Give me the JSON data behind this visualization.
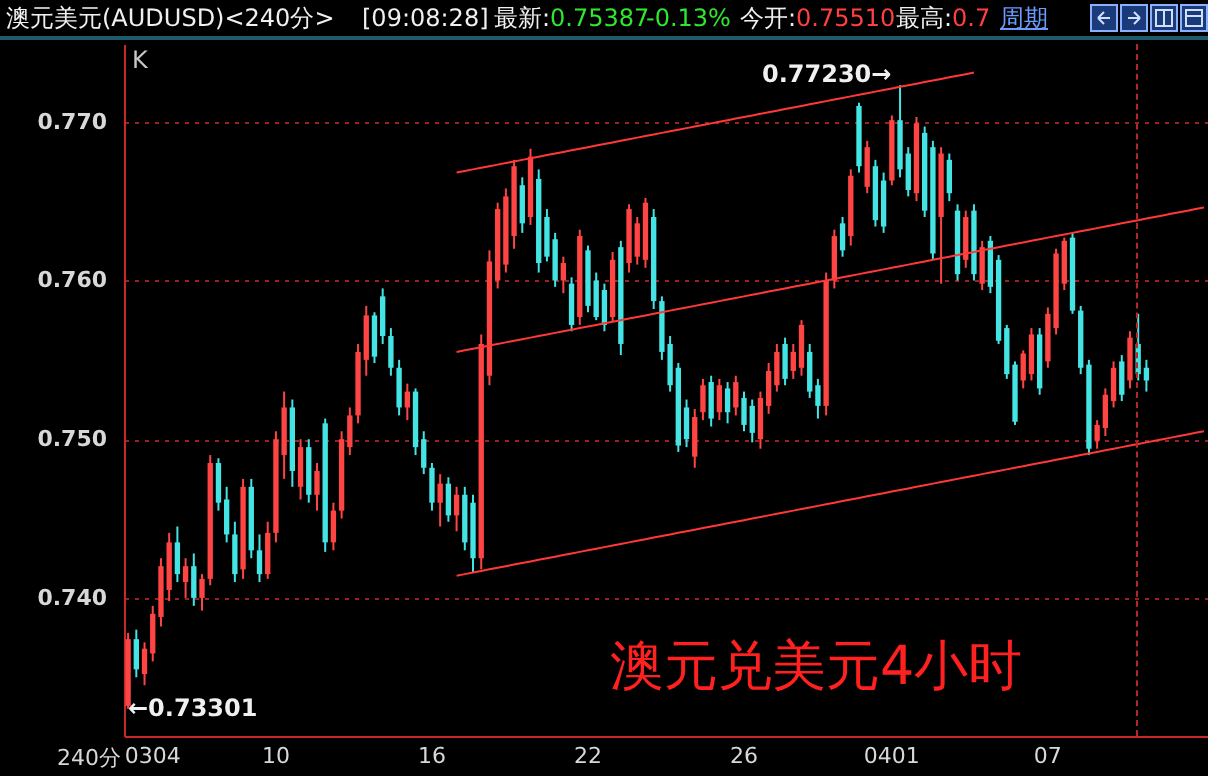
{
  "chart_data": {
    "type": "candlestick",
    "title": "澳元美元(AUDUSD)<240分>",
    "xlabel": "240分",
    "categories": [
      null,
      null,
      null,
      "0304",
      null,
      null,
      null,
      null,
      null,
      null,
      null,
      null,
      null,
      null,
      null,
      null,
      null,
      null,
      "10",
      null,
      null,
      null,
      null,
      null,
      null,
      null,
      null,
      null,
      null,
      null,
      null,
      null,
      null,
      null,
      null,
      null,
      null,
      "16",
      null,
      null,
      null,
      null,
      null,
      null,
      null,
      null,
      null,
      null,
      null,
      null,
      null,
      null,
      null,
      null,
      null,
      null,
      "22",
      null,
      null,
      null,
      null,
      null,
      null,
      null,
      null,
      null,
      null,
      null,
      null,
      null,
      null,
      null,
      null,
      null,
      null,
      "26",
      null,
      null,
      null,
      null,
      null,
      null,
      null,
      null,
      null,
      null,
      null,
      null,
      null,
      null,
      null,
      null,
      null,
      "0401",
      null,
      null,
      null,
      null,
      null,
      null,
      null,
      null,
      null,
      null,
      null,
      null,
      null,
      null,
      null,
      null,
      null,
      null,
      "07",
      null,
      null,
      null,
      null,
      null,
      null,
      null,
      null,
      null,
      null,
      null,
      null,
      null,
      null,
      null,
      null,
      null,
      null,
      null
    ],
    "ohlc": [
      [
        0.7332,
        0.7378,
        0.73301,
        0.7374
      ],
      [
        0.7374,
        0.738,
        0.735,
        0.7355
      ],
      [
        0.7352,
        0.7372,
        0.7345,
        0.7368
      ],
      [
        0.7365,
        0.7395,
        0.736,
        0.739
      ],
      [
        0.7388,
        0.7425,
        0.7382,
        0.742
      ],
      [
        0.7405,
        0.7441,
        0.7398,
        0.7435
      ],
      [
        0.7435,
        0.7445,
        0.741,
        0.7415
      ],
      [
        0.741,
        0.7425,
        0.74,
        0.742
      ],
      [
        0.742,
        0.7428,
        0.7395,
        0.74
      ],
      [
        0.74,
        0.7415,
        0.7392,
        0.7412
      ],
      [
        0.7412,
        0.749,
        0.7408,
        0.7485
      ],
      [
        0.7485,
        0.7488,
        0.7455,
        0.746
      ],
      [
        0.7462,
        0.747,
        0.7435,
        0.744
      ],
      [
        0.744,
        0.7448,
        0.741,
        0.7415
      ],
      [
        0.7418,
        0.7475,
        0.7412,
        0.747
      ],
      [
        0.747,
        0.7475,
        0.7425,
        0.743
      ],
      [
        0.743,
        0.744,
        0.741,
        0.7415
      ],
      [
        0.7415,
        0.7448,
        0.7412,
        0.7441
      ],
      [
        0.7441,
        0.7505,
        0.7435,
        0.75
      ],
      [
        0.749,
        0.753,
        0.7475,
        0.752
      ],
      [
        0.752,
        0.7525,
        0.747,
        0.748
      ],
      [
        0.747,
        0.75,
        0.7462,
        0.7495
      ],
      [
        0.7495,
        0.75,
        0.746,
        0.7465
      ],
      [
        0.7465,
        0.7485,
        0.7455,
        0.748
      ],
      [
        0.751,
        0.7513,
        0.7429,
        0.7435
      ],
      [
        0.7435,
        0.746,
        0.743,
        0.7455
      ],
      [
        0.7455,
        0.7505,
        0.745,
        0.75
      ],
      [
        0.7495,
        0.752,
        0.749,
        0.7515
      ],
      [
        0.7515,
        0.756,
        0.751,
        0.7555
      ],
      [
        0.755,
        0.7584,
        0.754,
        0.7578
      ],
      [
        0.7578,
        0.758,
        0.7548,
        0.7552
      ],
      [
        0.759,
        0.7595,
        0.756,
        0.7565
      ],
      [
        0.7565,
        0.757,
        0.754,
        0.7545
      ],
      [
        0.7545,
        0.755,
        0.7515,
        0.752
      ],
      [
        0.752,
        0.7535,
        0.7512,
        0.753
      ],
      [
        0.753,
        0.7532,
        0.749,
        0.7495
      ],
      [
        0.75,
        0.7505,
        0.7478,
        0.7482
      ],
      [
        0.7482,
        0.7485,
        0.7455,
        0.746
      ],
      [
        0.746,
        0.7478,
        0.7445,
        0.7472
      ],
      [
        0.7472,
        0.7476,
        0.7448,
        0.7452
      ],
      [
        0.7452,
        0.747,
        0.7442,
        0.7465
      ],
      [
        0.7465,
        0.747,
        0.743,
        0.7435
      ],
      [
        0.746,
        0.7465,
        0.7416,
        0.7425
      ],
      [
        0.7425,
        0.7566,
        0.7418,
        0.756
      ],
      [
        0.754,
        0.7619,
        0.7534,
        0.7612
      ],
      [
        0.76,
        0.7649,
        0.7595,
        0.7645
      ],
      [
        0.761,
        0.7658,
        0.7605,
        0.7653
      ],
      [
        0.7628,
        0.7676,
        0.762,
        0.7672
      ],
      [
        0.766,
        0.7665,
        0.763,
        0.7636
      ],
      [
        0.764,
        0.7683,
        0.7635,
        0.7678
      ],
      [
        0.7664,
        0.767,
        0.7605,
        0.7611
      ],
      [
        0.764,
        0.7645,
        0.7612,
        0.7615
      ],
      [
        0.7626,
        0.763,
        0.7596,
        0.76
      ],
      [
        0.76,
        0.7615,
        0.7592,
        0.7611
      ],
      [
        0.7598,
        0.7602,
        0.7568,
        0.7572
      ],
      [
        0.7577,
        0.7632,
        0.7572,
        0.7628
      ],
      [
        0.7619,
        0.7622,
        0.758,
        0.7584
      ],
      [
        0.76,
        0.7605,
        0.7575,
        0.7577
      ],
      [
        0.7594,
        0.7598,
        0.7568,
        0.7572
      ],
      [
        0.7577,
        0.7618,
        0.7574,
        0.7613
      ],
      [
        0.7621,
        0.7625,
        0.7553,
        0.756
      ],
      [
        0.7611,
        0.7648,
        0.7605,
        0.7645
      ],
      [
        0.7615,
        0.764,
        0.761,
        0.7636
      ],
      [
        0.7613,
        0.7652,
        0.7608,
        0.7649
      ],
      [
        0.764,
        0.7645,
        0.7582,
        0.7587
      ],
      [
        0.7587,
        0.759,
        0.755,
        0.7555
      ],
      [
        0.756,
        0.7565,
        0.753,
        0.7534
      ],
      [
        0.7545,
        0.7548,
        0.7492,
        0.7496
      ],
      [
        0.752,
        0.7525,
        0.7495,
        0.75
      ],
      [
        0.7489,
        0.7519,
        0.7482,
        0.7514
      ],
      [
        0.7517,
        0.7538,
        0.7512,
        0.7534
      ],
      [
        0.7536,
        0.754,
        0.7508,
        0.7513
      ],
      [
        0.7517,
        0.7538,
        0.7512,
        0.7534
      ],
      [
        0.7532,
        0.7536,
        0.751,
        0.7517
      ],
      [
        0.752,
        0.754,
        0.7515,
        0.7536
      ],
      [
        0.7526,
        0.753,
        0.7505,
        0.7509
      ],
      [
        0.7521,
        0.7525,
        0.7498,
        0.7504
      ],
      [
        0.75,
        0.753,
        0.7494,
        0.7526
      ],
      [
        0.7521,
        0.7548,
        0.7516,
        0.7543
      ],
      [
        0.7534,
        0.756,
        0.753,
        0.7555
      ],
      [
        0.756,
        0.7564,
        0.7534,
        0.7538
      ],
      [
        0.7543,
        0.756,
        0.7538,
        0.7555
      ],
      [
        0.7545,
        0.7575,
        0.754,
        0.7572
      ],
      [
        0.7555,
        0.756,
        0.7526,
        0.753
      ],
      [
        0.7534,
        0.7538,
        0.7513,
        0.7521
      ],
      [
        0.7521,
        0.7605,
        0.7515,
        0.76
      ],
      [
        0.76,
        0.7632,
        0.7595,
        0.7628
      ],
      [
        0.7636,
        0.764,
        0.7615,
        0.7619
      ],
      [
        0.7628,
        0.767,
        0.7622,
        0.7666
      ],
      [
        0.771,
        0.7712,
        0.7668,
        0.7672
      ],
      [
        0.7659,
        0.7688,
        0.7655,
        0.7684
      ],
      [
        0.7672,
        0.7676,
        0.7634,
        0.7638
      ],
      [
        0.7663,
        0.7668,
        0.763,
        0.7634
      ],
      [
        0.7663,
        0.7704,
        0.766,
        0.7701
      ],
      [
        0.7701,
        0.7723,
        0.7665,
        0.767
      ],
      [
        0.768,
        0.7684,
        0.7653,
        0.7657
      ],
      [
        0.7655,
        0.7703,
        0.765,
        0.7699
      ],
      [
        0.7693,
        0.7697,
        0.764,
        0.7644
      ],
      [
        0.7684,
        0.7688,
        0.7613,
        0.7617
      ],
      [
        0.764,
        0.7684,
        0.7598,
        0.768
      ],
      [
        0.7676,
        0.768,
        0.765,
        0.7655
      ],
      [
        0.7644,
        0.7648,
        0.76,
        0.7604
      ],
      [
        0.7613,
        0.7644,
        0.7608,
        0.764
      ],
      [
        0.7644,
        0.7648,
        0.76,
        0.7604
      ],
      [
        0.7598,
        0.7625,
        0.7594,
        0.7621
      ],
      [
        0.7625,
        0.7628,
        0.7592,
        0.7596
      ],
      [
        0.7613,
        0.7616,
        0.756,
        0.7562
      ],
      [
        0.757,
        0.7572,
        0.7538,
        0.7541
      ],
      [
        0.7547,
        0.7549,
        0.7509,
        0.7511
      ],
      [
        0.7537,
        0.7556,
        0.7532,
        0.7554
      ],
      [
        0.7541,
        0.757,
        0.7537,
        0.7566
      ],
      [
        0.7566,
        0.757,
        0.7528,
        0.7532
      ],
      [
        0.7549,
        0.7583,
        0.7545,
        0.7579
      ],
      [
        0.757,
        0.762,
        0.7566,
        0.7617
      ],
      [
        0.7598,
        0.7627,
        0.7594,
        0.7625
      ],
      [
        0.7627,
        0.763,
        0.7579,
        0.7581
      ],
      [
        0.7581,
        0.7584,
        0.7541,
        0.7545
      ],
      [
        0.7547,
        0.755,
        0.749,
        0.7494
      ],
      [
        0.7499,
        0.7512,
        0.7494,
        0.7509
      ],
      [
        0.7507,
        0.7532,
        0.7502,
        0.7528
      ],
      [
        0.7524,
        0.7549,
        0.752,
        0.7545
      ],
      [
        0.7549,
        0.7553,
        0.7524,
        0.7528
      ],
      [
        0.7537,
        0.7568,
        0.7532,
        0.7564
      ],
      [
        0.756,
        0.7579,
        0.7537,
        0.7541
      ],
      [
        0.7545,
        0.755,
        0.753,
        0.7537
      ],
      null,
      null,
      null,
      null,
      null,
      null,
      null
    ],
    "colors": [
      "#ff4444",
      "#44e4e4",
      "#ff4444",
      "#ff4444",
      "#ff4444",
      "#ff4444",
      "#44e4e4",
      "#ff4444",
      "#44e4e4",
      "#ff4444",
      "#ff4444",
      "#44e4e4",
      "#44e4e4",
      "#44e4e4",
      "#ff4444",
      "#44e4e4",
      "#44e4e4",
      "#ff4444",
      "#ff4444",
      "#ff4444",
      "#44e4e4",
      "#ff4444",
      "#44e4e4",
      "#ff4444",
      "#44e4e4",
      "#ff4444",
      "#ff4444",
      "#ff4444",
      "#ff4444",
      "#ff4444",
      "#44e4e4",
      "#44e4e4",
      "#44e4e4",
      "#44e4e4",
      "#ff4444",
      "#44e4e4",
      "#44e4e4",
      "#44e4e4",
      "#ff4444",
      "#44e4e4",
      "#ff4444",
      "#44e4e4",
      "#44e4e4",
      "#ff4444",
      "#ff4444",
      "#ff4444",
      "#ff4444",
      "#ff4444",
      "#44e4e4",
      "#ff4444",
      "#44e4e4",
      "#44e4e4",
      "#44e4e4",
      "#ff4444",
      "#44e4e4",
      "#ff4444",
      "#44e4e4",
      "#44e4e4",
      "#44e4e4",
      "#ff4444",
      "#44e4e4",
      "#ff4444",
      "#ff4444",
      "#ff4444",
      "#44e4e4",
      "#44e4e4",
      "#44e4e4",
      "#44e4e4",
      "#44e4e4",
      "#ff4444",
      "#ff4444",
      "#44e4e4",
      "#ff4444",
      "#44e4e4",
      "#ff4444",
      "#44e4e4",
      "#44e4e4",
      "#ff4444",
      "#ff4444",
      "#ff4444",
      "#44e4e4",
      "#ff4444",
      "#ff4444",
      "#44e4e4",
      "#44e4e4",
      "#ff4444",
      "#ff4444",
      "#44e4e4",
      "#ff4444",
      "#44e4e4",
      "#ff4444",
      "#44e4e4",
      "#44e4e4",
      "#ff4444",
      "#44e4e4",
      "#44e4e4",
      "#ff4444",
      "#44e4e4",
      "#44e4e4",
      "#ff4444",
      "#44e4e4",
      "#44e4e4",
      "#ff4444",
      "#44e4e4",
      "#ff4444",
      "#44e4e4",
      "#44e4e4",
      "#44e4e4",
      "#44e4e4",
      "#ff4444",
      "#ff4444",
      "#44e4e4",
      "#ff4444",
      "#ff4444",
      "#ff4444",
      "#44e4e4",
      "#44e4e4",
      "#44e4e4",
      "#ff4444",
      "#ff4444",
      "#ff4444",
      "#44e4e4",
      "#ff4444",
      "#44e4e4",
      "#44e4e4",
      null,
      null,
      null,
      null,
      null,
      null,
      null
    ],
    "series": [
      {
        "type": "line",
        "color": "#ff3838",
        "values": [
          null,
          null,
          null,
          null,
          null,
          null,
          null,
          null,
          null,
          null,
          null,
          null,
          null,
          null,
          null,
          null,
          null,
          null,
          null,
          null,
          null,
          null,
          null,
          null,
          null,
          null,
          null,
          null,
          null,
          null,
          null,
          null,
          null,
          null,
          null,
          null,
          null,
          null,
          null,
          null,
          0.7668,
          0.7669,
          0.767,
          0.7671,
          0.7672,
          0.7673,
          0.7674,
          0.7675,
          0.7676,
          0.7677,
          0.7678,
          0.7679,
          0.768,
          0.7681,
          0.7682,
          0.7683,
          0.7684,
          0.7685,
          0.7686,
          0.7687,
          0.7688,
          0.7689,
          0.769,
          0.7691,
          0.7692,
          0.7693,
          0.7694,
          0.7695,
          0.7696,
          0.7697,
          0.7698,
          0.7699,
          0.77,
          0.7701,
          0.7702,
          0.7703,
          0.7704,
          0.7705,
          0.7706,
          0.7707,
          0.7708,
          0.7709,
          0.771,
          0.7711,
          0.7712,
          0.7713,
          0.7714,
          0.7715,
          0.7716,
          0.7717,
          0.7718,
          0.7719,
          0.772,
          0.7721,
          0.7722,
          0.7723,
          0.7724,
          0.7725,
          0.7726,
          0.7727,
          0.7728,
          0.7729,
          0.773,
          0.7731,
          null,
          null,
          null,
          null,
          null,
          null,
          null,
          null,
          null,
          null,
          null,
          null,
          null,
          null,
          null,
          null,
          null,
          null,
          null,
          null,
          null,
          null,
          null,
          null,
          null,
          null,
          null,
          null
        ]
      },
      {
        "type": "line",
        "color": "#ff3838",
        "values": [
          null,
          null,
          null,
          null,
          null,
          null,
          null,
          null,
          null,
          null,
          null,
          null,
          null,
          null,
          null,
          null,
          null,
          null,
          null,
          null,
          null,
          null,
          null,
          null,
          null,
          null,
          null,
          null,
          null,
          null,
          null,
          null,
          null,
          null,
          null,
          null,
          null,
          null,
          null,
          null,
          0.7555,
          0.7556,
          0.7557,
          0.7558,
          0.7559,
          0.756,
          0.7561,
          0.7562,
          0.7563,
          0.7564,
          0.7565,
          0.7566,
          0.7567,
          0.7568,
          0.7569,
          0.757,
          0.7571,
          0.7572,
          0.7573,
          0.7574,
          0.7575,
          0.7576,
          0.7577,
          0.7578,
          0.7579,
          0.758,
          0.7581,
          0.7582,
          0.7583,
          0.7584,
          0.7585,
          0.7586,
          0.7587,
          0.7588,
          0.7589,
          0.759,
          0.7591,
          0.7592,
          0.7593,
          0.7594,
          0.7595,
          0.7596,
          0.7597,
          0.7598,
          0.7599,
          0.76,
          0.7601,
          0.7602,
          0.7603,
          0.7604,
          0.7605,
          0.7606,
          0.7607,
          0.7608,
          0.7609,
          0.761,
          0.7611,
          0.7612,
          0.7613,
          0.7614,
          0.7615,
          0.7616,
          0.7617,
          0.7618,
          0.7619,
          0.762,
          0.7621,
          0.7622,
          0.7623,
          0.7624,
          0.7625,
          0.7626,
          0.7627,
          0.7628,
          0.7629,
          0.763,
          0.7631,
          0.7632,
          0.7633,
          0.7634,
          0.7635,
          0.7636,
          0.7637,
          0.7638,
          0.7639,
          0.764,
          0.7641,
          0.7642,
          0.7643,
          0.7644,
          0.7645,
          0.7646
        ]
      },
      {
        "type": "line",
        "color": "#ff3838",
        "values": [
          null,
          null,
          null,
          null,
          null,
          null,
          null,
          null,
          null,
          null,
          null,
          null,
          null,
          null,
          null,
          null,
          null,
          null,
          null,
          null,
          null,
          null,
          null,
          null,
          null,
          null,
          null,
          null,
          null,
          null,
          null,
          null,
          null,
          null,
          null,
          null,
          null,
          null,
          null,
          null,
          0.7414,
          0.7415,
          0.7416,
          0.7417,
          0.7418,
          0.7419,
          0.742,
          0.7421,
          0.7422,
          0.7423,
          0.7424,
          0.7425,
          0.7426,
          0.7427,
          0.7428,
          0.7429,
          0.743,
          0.7431,
          0.7432,
          0.7433,
          0.7434,
          0.7435,
          0.7436,
          0.7437,
          0.7438,
          0.7439,
          0.744,
          0.7441,
          0.7442,
          0.7443,
          0.7444,
          0.7445,
          0.7446,
          0.7447,
          0.7448,
          0.7449,
          0.745,
          0.7451,
          0.7452,
          0.7453,
          0.7454,
          0.7455,
          0.7456,
          0.7457,
          0.7458,
          0.7459,
          0.746,
          0.7461,
          0.7462,
          0.7463,
          0.7464,
          0.7465,
          0.7466,
          0.7467,
          0.7468,
          0.7469,
          0.747,
          0.7471,
          0.7472,
          0.7473,
          0.7474,
          0.7475,
          0.7476,
          0.7477,
          0.7478,
          0.7479,
          0.748,
          0.7481,
          0.7482,
          0.7483,
          0.7484,
          0.7485,
          0.7486,
          0.7487,
          0.7488,
          0.7489,
          0.749,
          0.7491,
          0.7492,
          0.7493,
          0.7494,
          0.7495,
          0.7496,
          0.7497,
          0.7498,
          0.7499,
          0.75,
          0.7501,
          0.7502,
          0.7503,
          0.7504,
          0.7505
        ]
      }
    ],
    "ylim": [
      0.7313,
      0.7749
    ],
    "yticks": [
      {
        "value": 0.74,
        "label": "0.740"
      },
      {
        "value": 0.75,
        "label": "0.750"
      },
      {
        "value": 0.76,
        "label": "0.760"
      },
      {
        "value": 0.77,
        "label": "0.770"
      }
    ],
    "grid": "y",
    "annotations": [
      "[09:08:28]",
      "最新:",
      "0.75387",
      "-0.13%",
      "今开:",
      "0.75510",
      "最高:",
      "0.7",
      "周期",
      "K",
      "澳元兑美元4小时",
      "0.77230→",
      "←0.73301"
    ]
  }
}
